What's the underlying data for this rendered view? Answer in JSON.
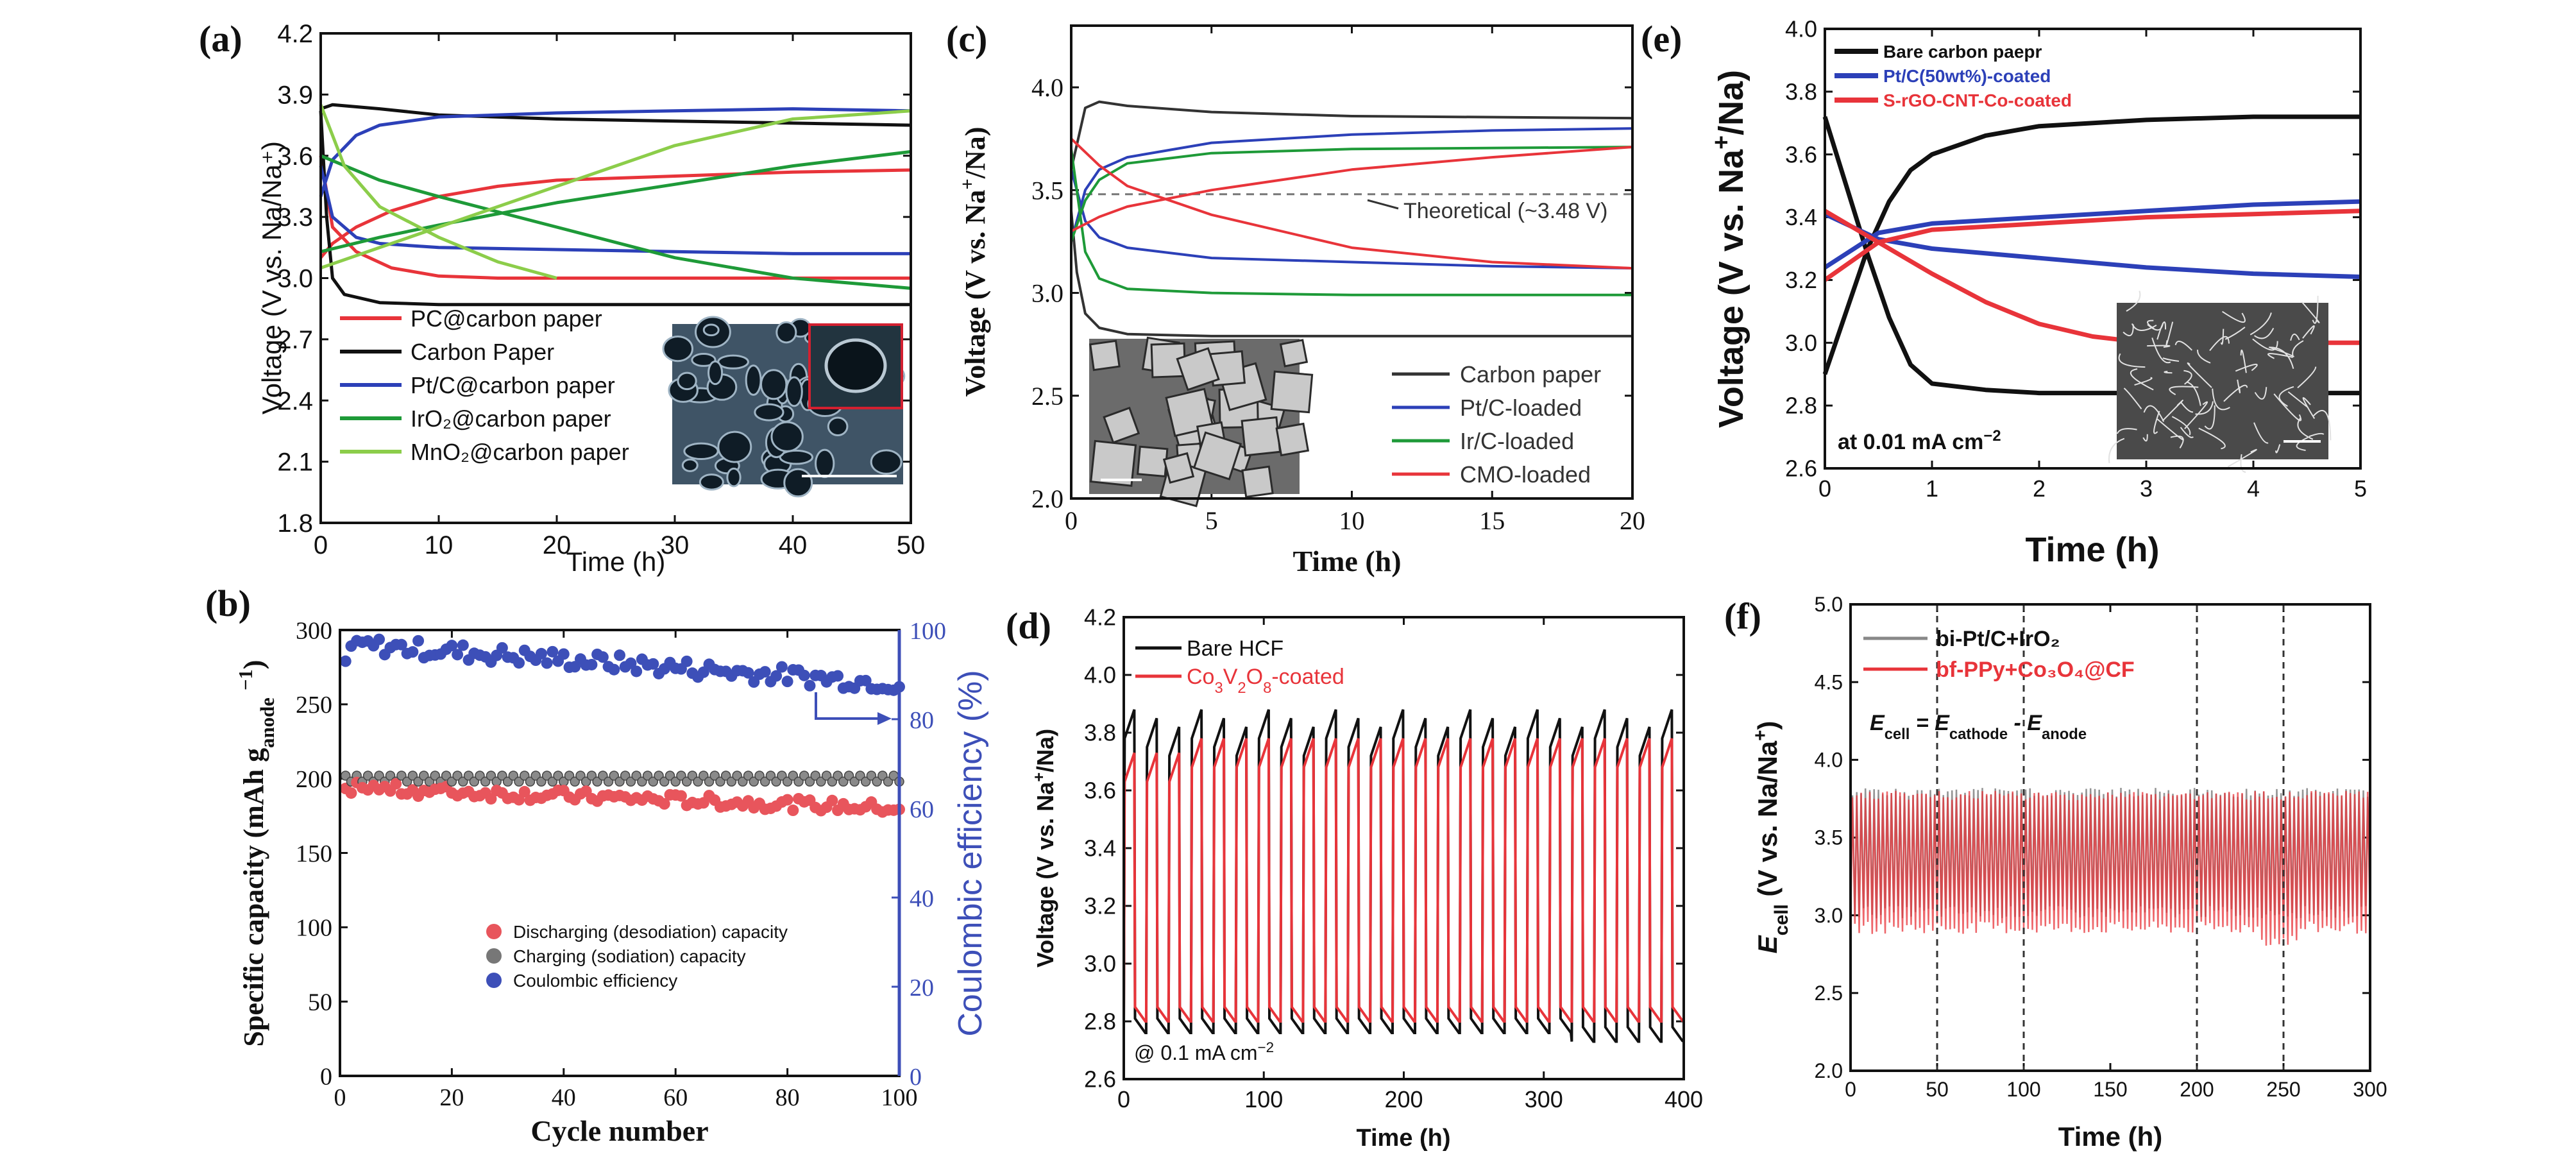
{
  "chart_data": [
    {
      "panel": "(a)",
      "type": "line",
      "xlabel": "Time (h)",
      "ylabel": "Voltage (V vs. Na/Na⁺)",
      "xlim": [
        0,
        50
      ],
      "ylim": [
        1.8,
        4.2
      ],
      "xticks": [
        "0",
        "10",
        "20",
        "30",
        "40",
        "50"
      ],
      "yticks": [
        "1.8",
        "2.1",
        "2.4",
        "2.7",
        "3.0",
        "3.3",
        "3.6",
        "3.9",
        "4.2"
      ],
      "legend_position": "bottom-left",
      "inset": "SEM image",
      "series": [
        {
          "name": "PC@carbon paper",
          "color": "#e8343a",
          "curves": [
            {
              "x": [
                0,
                1,
                3,
                6,
                10,
                15,
                20,
                30,
                40,
                50
              ],
              "y": [
                3.6,
                3.25,
                3.13,
                3.05,
                3.01,
                3.0,
                3.0,
                3.0,
                3.0,
                3.0
              ]
            },
            {
              "x": [
                0,
                1,
                3,
                6,
                10,
                15,
                20,
                30,
                40,
                50
              ],
              "y": [
                3.1,
                3.17,
                3.25,
                3.33,
                3.4,
                3.45,
                3.48,
                3.5,
                3.52,
                3.53
              ]
            }
          ]
        },
        {
          "name": "Carbon Paper",
          "color": "#111111",
          "curves": [
            {
              "x": [
                0,
                0.5,
                1,
                2,
                5,
                10,
                20,
                30,
                40,
                50
              ],
              "y": [
                3.82,
                3.3,
                3.0,
                2.92,
                2.88,
                2.87,
                2.87,
                2.87,
                2.87,
                2.87
              ]
            },
            {
              "x": [
                0,
                1,
                5,
                10,
                20,
                30,
                40,
                50
              ],
              "y": [
                3.83,
                3.85,
                3.83,
                3.8,
                3.78,
                3.77,
                3.76,
                3.75
              ]
            }
          ]
        },
        {
          "name": "Pt/C@carbon paper",
          "color": "#2c40b8",
          "curves": [
            {
              "x": [
                0,
                1,
                3,
                5,
                10,
                20,
                30,
                40,
                50
              ],
              "y": [
                3.55,
                3.3,
                3.2,
                3.17,
                3.15,
                3.14,
                3.13,
                3.12,
                3.12
              ]
            },
            {
              "x": [
                0,
                1,
                3,
                5,
                10,
                20,
                30,
                40,
                50
              ],
              "y": [
                3.4,
                3.58,
                3.7,
                3.75,
                3.79,
                3.81,
                3.82,
                3.83,
                3.82
              ]
            }
          ]
        },
        {
          "name": "IrO₂@carbon paper",
          "color": "#1e9a38",
          "curves": [
            {
              "x": [
                0,
                5,
                10,
                20,
                30,
                40,
                50
              ],
              "y": [
                3.6,
                3.48,
                3.4,
                3.25,
                3.1,
                3.0,
                2.95
              ]
            },
            {
              "x": [
                0,
                5,
                10,
                20,
                30,
                40,
                50
              ],
              "y": [
                3.13,
                3.2,
                3.26,
                3.37,
                3.46,
                3.55,
                3.62
              ]
            }
          ]
        },
        {
          "name": "MnO₂@carbon paper",
          "color": "#8ccd4a",
          "curves": [
            {
              "x": [
                0,
                2,
                5,
                10,
                15,
                20
              ],
              "y": [
                3.85,
                3.55,
                3.35,
                3.2,
                3.08,
                3.0
              ]
            },
            {
              "x": [
                0,
                5,
                10,
                20,
                30,
                40,
                50
              ],
              "y": [
                3.05,
                3.15,
                3.25,
                3.45,
                3.65,
                3.78,
                3.82
              ]
            }
          ]
        }
      ]
    },
    {
      "panel": "(b)",
      "type": "scatter",
      "xlabel": "Cycle number",
      "ylabel": "Specific capacity (mAh g",
      "ylabel_sub": "anode",
      "ylabel_sup": "−1",
      "ylabel_end": ")",
      "y2label": "Coulombic efficiency (%)",
      "xlim": [
        0,
        100
      ],
      "ylim": [
        0,
        300
      ],
      "y2lim": [
        0,
        100
      ],
      "xticks": [
        "0",
        "20",
        "40",
        "60",
        "80",
        "100"
      ],
      "yticks": [
        "0",
        "50",
        "100",
        "150",
        "200",
        "250",
        "300"
      ],
      "y2ticks": [
        "0",
        "20",
        "40",
        "60",
        "80",
        "100"
      ],
      "legend_position": "bottom-left",
      "series": [
        {
          "name": "Discharging (desodiation) capacity",
          "color": "#e8555c",
          "x_range": [
            1,
            100
          ],
          "y_approx": [
            178,
            195
          ]
        },
        {
          "name": "Charging (sodiation) capacity",
          "color": "#777777",
          "x_range": [
            1,
            100
          ],
          "y_approx": 200
        },
        {
          "name": "Coulombic efficiency",
          "color": "#3d4fb8",
          "axis": "right",
          "x_range": [
            1,
            100
          ],
          "y_approx": [
            86,
            98
          ]
        }
      ]
    },
    {
      "panel": "(c)",
      "type": "line",
      "xlabel": "Time (h)",
      "ylabel": "Voltage (V vs. Na",
      "ylabel_sup": "+",
      "ylabel_end": "/Na)",
      "xlim": [
        0,
        20
      ],
      "ylim": [
        2.0,
        4.3
      ],
      "xticks": [
        "0",
        "5",
        "10",
        "15",
        "20"
      ],
      "yticks": [
        "2.0",
        "2.5",
        "3.0",
        "3.5",
        "4.0"
      ],
      "annotation": "Theoretical (~3.48 V)",
      "reference_line": 3.48,
      "legend_position": "bottom-right",
      "inset": "SEM image",
      "series": [
        {
          "name": "Carbon paper",
          "color": "#333333",
          "curves": [
            {
              "x": [
                0,
                0.2,
                0.5,
                1,
                2,
                5,
                10,
                20
              ],
              "y": [
                3.4,
                3.1,
                2.9,
                2.83,
                2.8,
                2.79,
                2.79,
                2.79
              ]
            },
            {
              "x": [
                0,
                0.5,
                1,
                2,
                5,
                10,
                20
              ],
              "y": [
                3.6,
                3.9,
                3.93,
                3.91,
                3.88,
                3.86,
                3.85
              ]
            }
          ]
        },
        {
          "name": "Pt/C-loaded",
          "color": "#2c40b8",
          "curves": [
            {
              "x": [
                0,
                0.5,
                1,
                2,
                5,
                10,
                15,
                20
              ],
              "y": [
                3.6,
                3.35,
                3.27,
                3.22,
                3.17,
                3.15,
                3.13,
                3.12
              ]
            },
            {
              "x": [
                0,
                0.5,
                1,
                2,
                5,
                10,
                15,
                20
              ],
              "y": [
                3.25,
                3.5,
                3.6,
                3.66,
                3.73,
                3.77,
                3.79,
                3.8
              ]
            }
          ]
        },
        {
          "name": "Ir/C-loaded",
          "color": "#1e9a38",
          "curves": [
            {
              "x": [
                0,
                0.5,
                1,
                2,
                5,
                10,
                20
              ],
              "y": [
                3.7,
                3.2,
                3.07,
                3.02,
                3.0,
                2.99,
                2.99
              ]
            },
            {
              "x": [
                0,
                0.5,
                1,
                2,
                5,
                10,
                20
              ],
              "y": [
                3.25,
                3.45,
                3.55,
                3.63,
                3.68,
                3.7,
                3.71
              ]
            }
          ]
        },
        {
          "name": "CMO-loaded",
          "color": "#e8343a",
          "curves": [
            {
              "x": [
                0,
                1,
                2,
                5,
                10,
                15,
                20
              ],
              "y": [
                3.75,
                3.62,
                3.52,
                3.38,
                3.22,
                3.15,
                3.12
              ]
            },
            {
              "x": [
                0,
                1,
                2,
                5,
                10,
                15,
                20
              ],
              "y": [
                3.3,
                3.37,
                3.42,
                3.5,
                3.6,
                3.66,
                3.71
              ]
            }
          ]
        }
      ]
    },
    {
      "panel": "(d)",
      "type": "line",
      "xlabel": "Time (h)",
      "ylabel": "Voltage (V vs. Na",
      "ylabel_sup": "+",
      "ylabel_end": "/Na)",
      "xlim": [
        0,
        400
      ],
      "ylim": [
        2.6,
        4.2
      ],
      "xticks": [
        "0",
        "100",
        "200",
        "300",
        "400"
      ],
      "yticks": [
        "2.6",
        "2.8",
        "3.0",
        "3.2",
        "3.4",
        "3.6",
        "3.8",
        "4.0",
        "4.2"
      ],
      "annotation": "@ 0.1 mA cm",
      "annotation_sup": "−2",
      "legend_position": "top-left",
      "series": [
        {
          "name": "Bare HCF",
          "color": "#111111",
          "cycle_period_h": 16,
          "charge_v": 3.88,
          "discharge_v": 2.76,
          "cycles": 25
        },
        {
          "name": "Co₃V₂O₈-coated",
          "color": "#e8343a",
          "cycle_period_h": 16,
          "charge_v": 3.78,
          "discharge_v": 2.8,
          "cycles": 25
        }
      ]
    },
    {
      "panel": "(e)",
      "type": "line",
      "xlabel": "Time (h)",
      "ylabel": "Voltage (V vs. Na",
      "ylabel_sup": "+",
      "ylabel_end": "/Na)",
      "xlim": [
        0,
        5
      ],
      "ylim": [
        2.6,
        4.0
      ],
      "xticks": [
        "0",
        "1",
        "2",
        "3",
        "4",
        "5"
      ],
      "yticks": [
        "2.6",
        "2.8",
        "3.0",
        "3.2",
        "3.4",
        "3.6",
        "3.8",
        "4.0"
      ],
      "annotation": "at 0.01 mA cm",
      "annotation_sup": "−2",
      "legend_position": "top-left",
      "inset": "SEM image",
      "series": [
        {
          "name": "Bare carbon paepr",
          "color": "#111111",
          "curves": [
            {
              "x": [
                0,
                0.2,
                0.4,
                0.6,
                0.8,
                1,
                1.5,
                2,
                3,
                4,
                5
              ],
              "y": [
                3.72,
                3.5,
                3.28,
                3.08,
                2.93,
                2.87,
                2.85,
                2.84,
                2.84,
                2.84,
                2.84
              ]
            },
            {
              "x": [
                0,
                0.2,
                0.4,
                0.6,
                0.8,
                1,
                1.5,
                2,
                3,
                4,
                5
              ],
              "y": [
                2.9,
                3.1,
                3.3,
                3.45,
                3.55,
                3.6,
                3.66,
                3.69,
                3.71,
                3.72,
                3.72
              ]
            }
          ]
        },
        {
          "name": "Pt/C(50wt%)-coated",
          "color": "#2c40b8",
          "curves": [
            {
              "x": [
                0,
                0.5,
                1,
                2,
                3,
                4,
                5
              ],
              "y": [
                3.41,
                3.33,
                3.3,
                3.27,
                3.24,
                3.22,
                3.21
              ]
            },
            {
              "x": [
                0,
                0.5,
                1,
                2,
                3,
                4,
                5
              ],
              "y": [
                3.24,
                3.35,
                3.38,
                3.4,
                3.42,
                3.44,
                3.45
              ]
            }
          ]
        },
        {
          "name": "S-rGO-CNT-Co-coated",
          "color": "#e8343a",
          "curves": [
            {
              "x": [
                0,
                0.5,
                1,
                1.5,
                2,
                2.5,
                3,
                4,
                5
              ],
              "y": [
                3.42,
                3.32,
                3.22,
                3.13,
                3.06,
                3.02,
                3.0,
                3.0,
                3.0
              ]
            },
            {
              "x": [
                0,
                0.5,
                1,
                2,
                3,
                4,
                5
              ],
              "y": [
                3.2,
                3.32,
                3.36,
                3.38,
                3.4,
                3.41,
                3.42
              ]
            }
          ]
        }
      ]
    },
    {
      "panel": "(f)",
      "type": "line",
      "xlabel": "Time (h)",
      "ylabel": "E",
      "ylabel_sub": "cell",
      "ylabel_end": " (V vs. Na/Na",
      "ylabel_sup": "+",
      "ylabel_close": ")",
      "xlim": [
        0,
        300
      ],
      "ylim": [
        2.0,
        5.0
      ],
      "xticks": [
        "0",
        "50",
        "100",
        "150",
        "200",
        "250",
        "300"
      ],
      "yticks": [
        "2.0",
        "2.5",
        "3.0",
        "3.5",
        "4.0",
        "4.5",
        "5.0"
      ],
      "vertical_dashed_lines": [
        50,
        100,
        200,
        250
      ],
      "equation": {
        "lhs": "E",
        "lhs_sub": "cell",
        "mid": " = E",
        "mid_sub": "cathode",
        "rhs": " - E",
        "rhs_sub": "anode"
      },
      "legend_position": "top-left",
      "series": [
        {
          "name": "bi-Pt/C+IrO₂",
          "color": "#888888",
          "charge_v": 3.82,
          "discharge_v": 2.98
        },
        {
          "name": "bf-PPy+Co₃O₄@CF",
          "color": "#e8343a",
          "charge_v": 3.8,
          "discharge_v": 2.88
        }
      ]
    }
  ]
}
